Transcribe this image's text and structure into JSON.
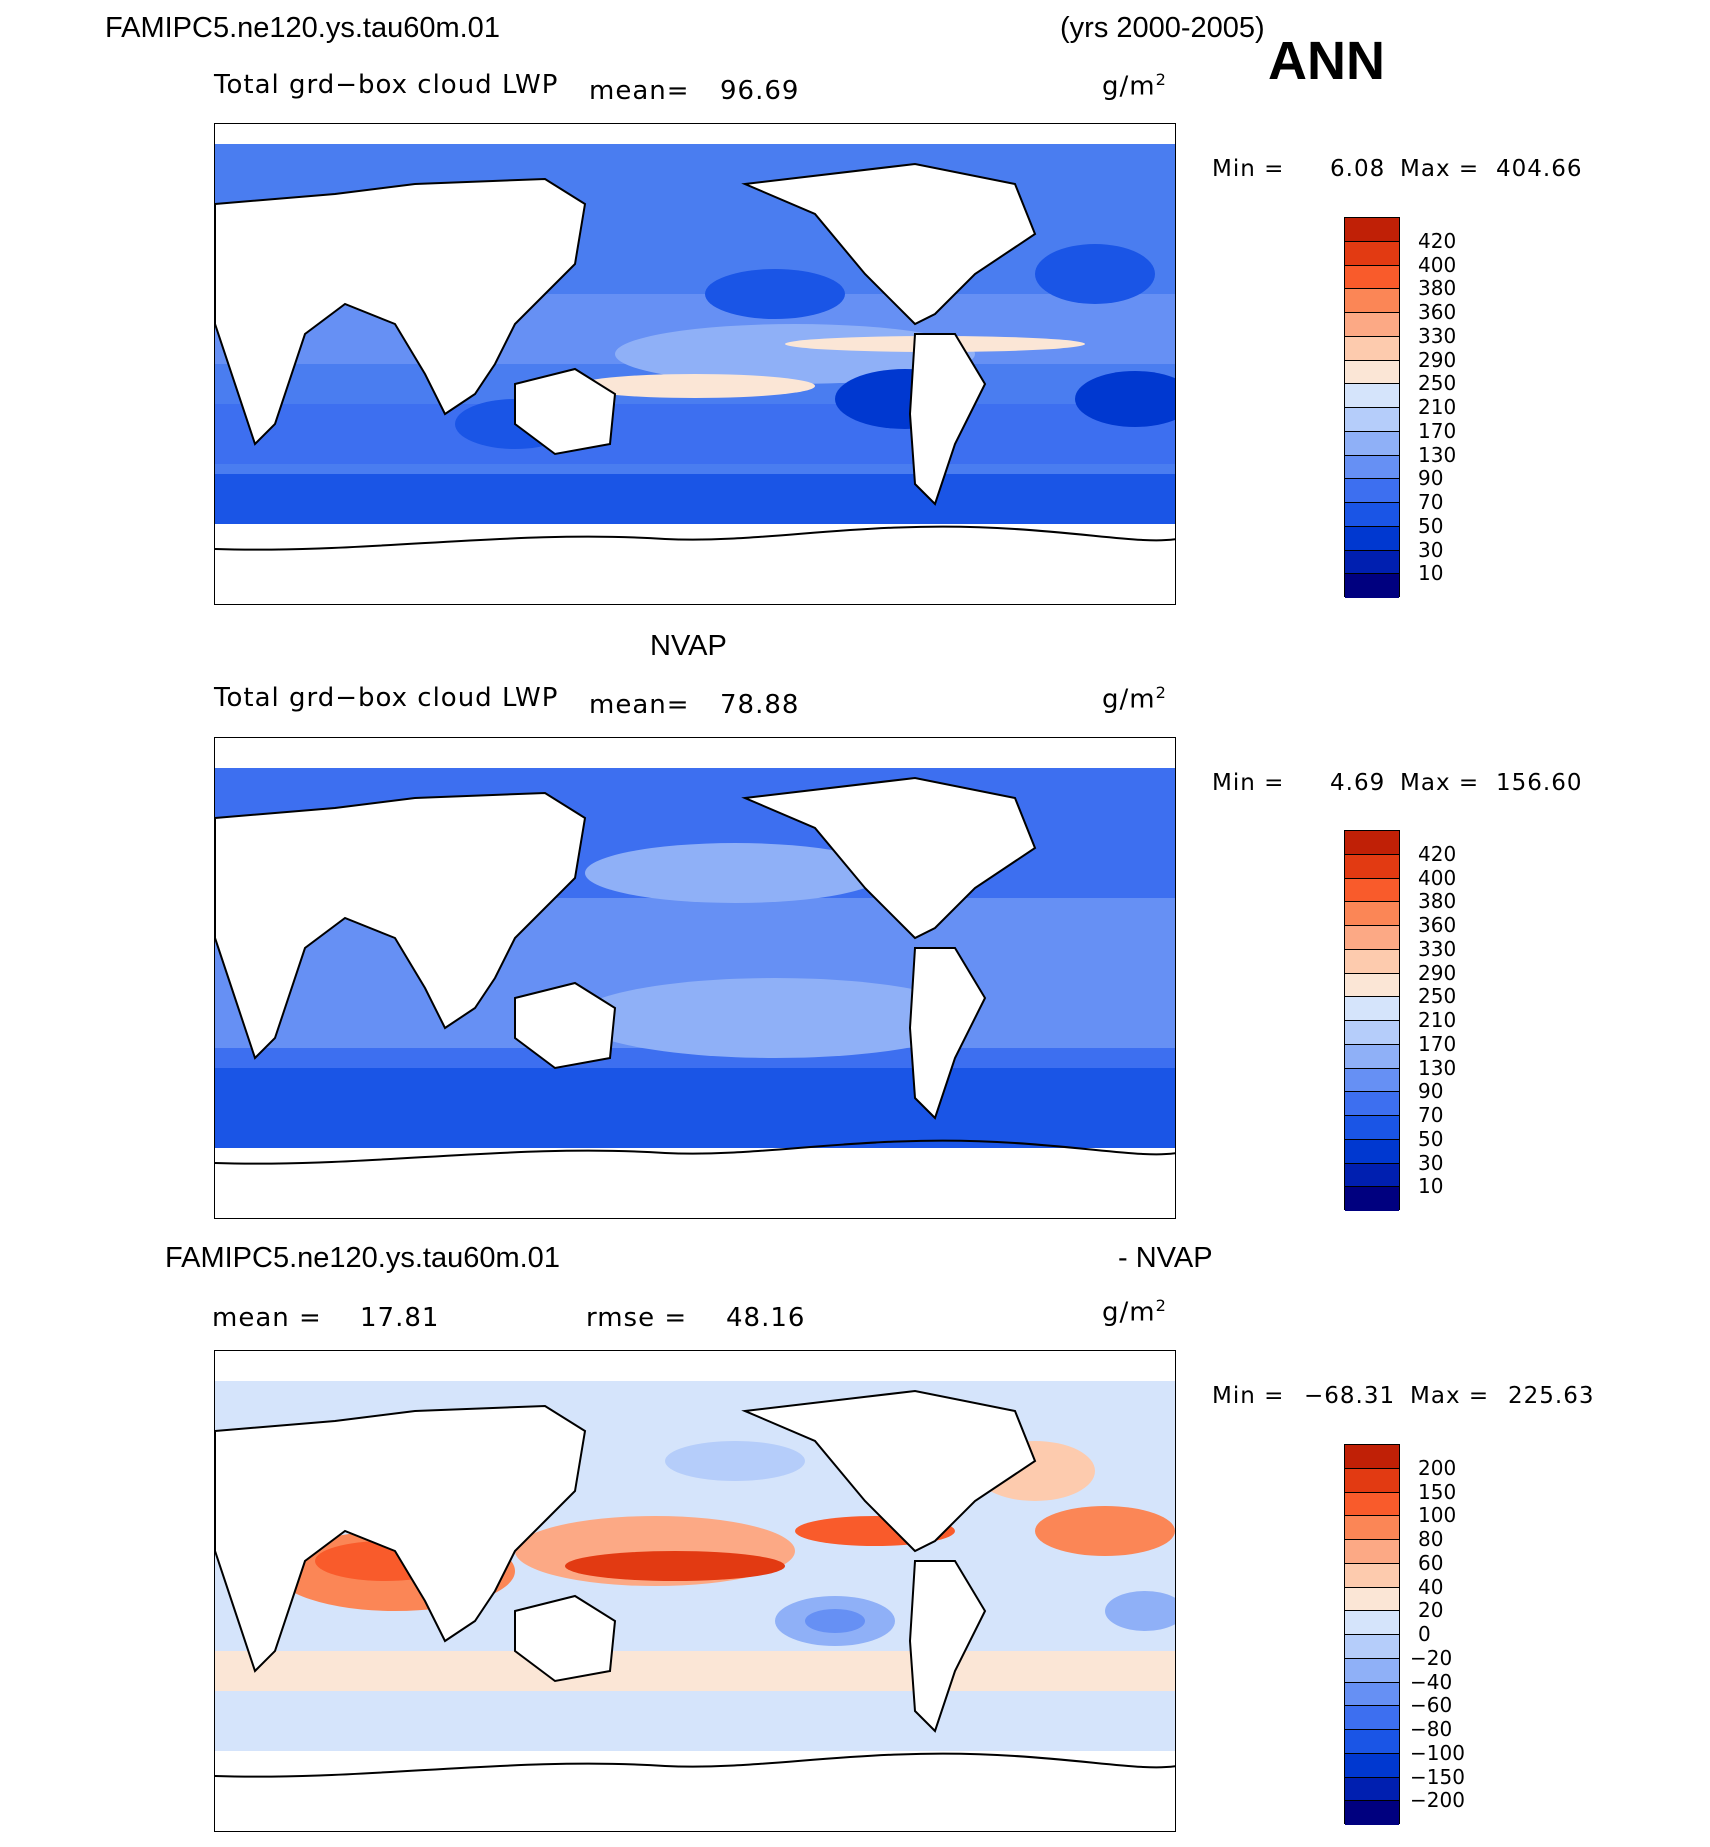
{
  "header": {
    "case_name": "FAMIPC5.ne120.ys.tau60m.01",
    "years": "(yrs 2000-2005)",
    "season": "ANN"
  },
  "colors": {
    "abs_scale": [
      "#00007f",
      "#001fb0",
      "#0038d0",
      "#1a55e6",
      "#3d6ff0",
      "#6690f4",
      "#8fb0f7",
      "#b5cdfa",
      "#d5e4fb",
      "#fbe6d6",
      "#fdcbae",
      "#fca985",
      "#fb8656",
      "#f95b2b",
      "#e23a12",
      "#c02006",
      "#8b0000"
    ],
    "diff_scale": [
      "#00007f",
      "#001fb0",
      "#0038d0",
      "#1a55e6",
      "#3d6ff0",
      "#6690f4",
      "#8fb0f7",
      "#b5cdfa",
      "#d5e4fb",
      "#fbe6d6",
      "#fdcbae",
      "#fca985",
      "#fb8656",
      "#f95b2b",
      "#e23a12",
      "#c02006",
      "#8b0000"
    ]
  },
  "chart_data": [
    {
      "type": "heatmap",
      "title": "FAMIPC5.ne120.ys.tau60m.01",
      "variable": "Total grd−box cloud LWP",
      "mean_label": "mean=",
      "mean_value": "96.69",
      "units_base": "g/m",
      "units_exp": "2",
      "min_label": "Min =",
      "min_value": "6.08",
      "max_label": "Max =",
      "max_value": "404.66",
      "colorbar_levels": [
        "420",
        "400",
        "380",
        "360",
        "330",
        "290",
        "250",
        "210",
        "170",
        "130",
        "90",
        "70",
        "50",
        "30",
        "10"
      ],
      "min": 6.08,
      "max": 404.66,
      "mean": 96.69
    },
    {
      "type": "heatmap",
      "title": "NVAP",
      "variable": "Total grd−box cloud LWP",
      "mean_label": "mean=",
      "mean_value": "78.88",
      "units_base": "g/m",
      "units_exp": "2",
      "min_label": "Min =",
      "min_value": "4.69",
      "max_label": "Max =",
      "max_value": "156.60",
      "colorbar_levels": [
        "420",
        "400",
        "380",
        "360",
        "330",
        "290",
        "250",
        "210",
        "170",
        "130",
        "90",
        "70",
        "50",
        "30",
        "10"
      ],
      "min": 4.69,
      "max": 156.6,
      "mean": 78.88
    },
    {
      "type": "heatmap",
      "title": "FAMIPC5.ne120.ys.tau60m.01",
      "title_suffix": "- NVAP",
      "mean_label": "mean =",
      "mean_value": "17.81",
      "rmse_label": "rmse =",
      "rmse_value": "48.16",
      "units_base": "g/m",
      "units_exp": "2",
      "min_label": "Min =",
      "min_value": "−68.31",
      "max_label": "Max =",
      "max_value": "225.63",
      "colorbar_levels": [
        "200",
        "150",
        "100",
        "80",
        "60",
        "40",
        "20",
        "0",
        "−20",
        "−40",
        "−60",
        "−80",
        "−100",
        "−150",
        "−200"
      ],
      "min": -68.31,
      "max": 225.63,
      "mean": 17.81,
      "rmse": 48.16
    }
  ]
}
